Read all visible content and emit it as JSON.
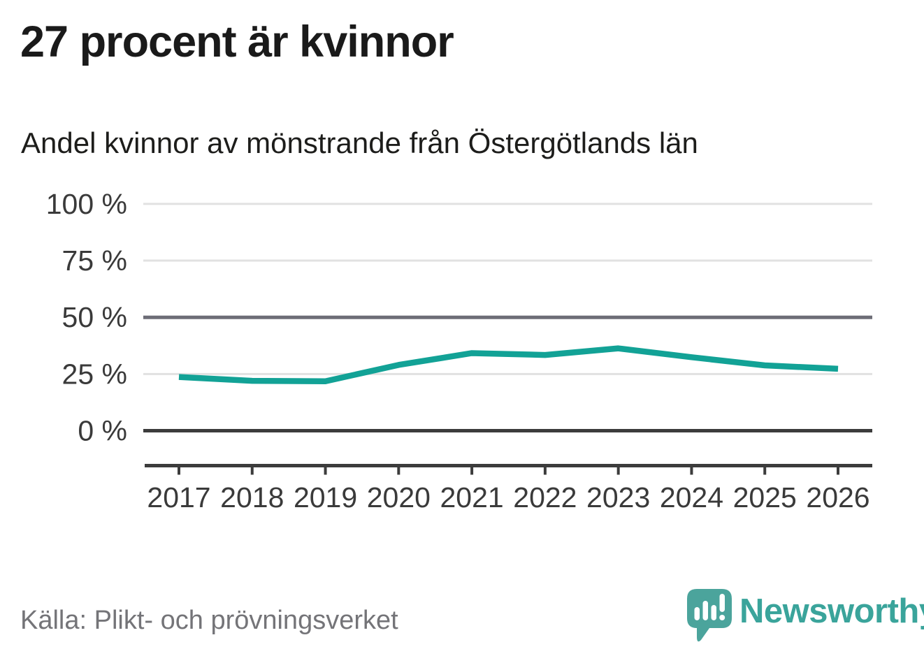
{
  "header": {
    "title": "27 procent är kvinnor",
    "subtitle": "Andel kvinnor av mönstrande från Östergötlands län"
  },
  "chart_data": {
    "type": "line",
    "title": "Andel kvinnor av mönstrande från Östergötlands län",
    "x": [
      2017,
      2018,
      2019,
      2020,
      2021,
      2022,
      2023,
      2024,
      2025,
      2026
    ],
    "series": [
      {
        "name": "Andel kvinnor av mönstrande",
        "color": "#12a296",
        "values": [
          23.7,
          22.0,
          21.8,
          29.0,
          34.2,
          33.4,
          36.3,
          32.4,
          28.8,
          27.3
        ]
      }
    ],
    "xlabel": "",
    "ylabel": "",
    "ylim": [
      0,
      100
    ],
    "yticks": [
      0,
      25,
      50,
      75,
      100
    ],
    "ytick_labels": [
      "0 %",
      "25 %",
      "50 %",
      "75 %",
      "100 %"
    ],
    "grid": "horizontal",
    "legend": "none",
    "annotation_headline_value": "27"
  },
  "footer": {
    "source": "Källa: Plikt- och prövningsverket",
    "brand": "Newsworthy"
  },
  "colors": {
    "accent": "#12a296",
    "brand_teal": "#3aa49b",
    "logo_bubble": "#4ba49c",
    "title_text": "#1a1a1a",
    "axis_text": "#3a3a3a",
    "grid_light": "#e1e1e1",
    "grid_mid": "#6d6d77",
    "grid_dark": "#3c3c3c",
    "source_text": "#747478"
  }
}
